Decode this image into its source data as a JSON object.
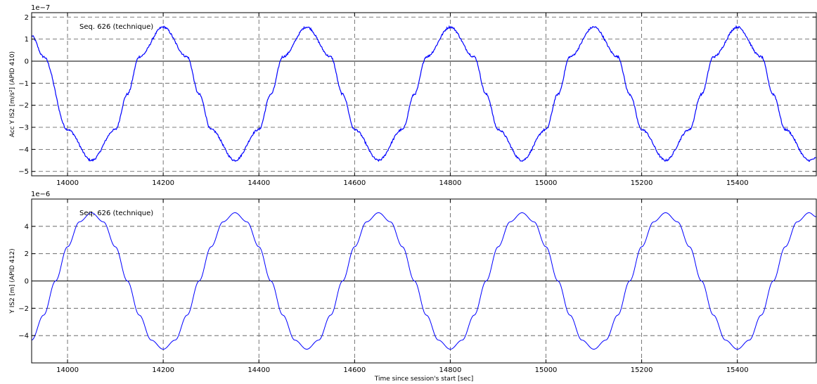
{
  "chart_data": [
    {
      "type": "line",
      "ylabel": "Acc Y IS2  [m/s²] (APID 410)",
      "annotation": "Seq. 626 (technique)",
      "offset_label": "1e−7",
      "xlim": [
        13925,
        15565
      ],
      "ylim": [
        -5.2e-07,
        2.2e-07
      ],
      "x_ticks": [
        14000,
        14200,
        14400,
        14600,
        14800,
        15000,
        15200,
        15400
      ],
      "x_tick_labels": [
        "14000",
        "14200",
        "14400",
        "14600",
        "14800",
        "15000",
        "15200",
        "15400"
      ],
      "y_ticks": [
        2e-07,
        1e-07,
        0,
        -1e-07,
        -2e-07,
        -3e-07,
        -4e-07,
        -5e-07
      ],
      "y_tick_labels": [
        "2",
        "1",
        "0",
        "−1",
        "−2",
        "−3",
        "−4",
        "−5"
      ],
      "grid": true,
      "color": "#0000ff",
      "noisy": true,
      "series": [
        {
          "x": [
            13925,
            13950,
            14000,
            14050,
            14100,
            14125,
            14150,
            14200,
            14250,
            14275,
            14300,
            14350,
            14400,
            14425,
            14450,
            14500,
            14550,
            14575,
            14600,
            14650,
            14700,
            14725,
            14750,
            14800,
            14850,
            14875,
            14900,
            14950,
            15000,
            15025,
            15050,
            15100,
            15150,
            15175,
            15200,
            15250,
            15300,
            15325,
            15350,
            15400,
            15450,
            15475,
            15500,
            15550,
            15565
          ],
          "y": [
            1.15e-07,
            2e-08,
            -3.1e-07,
            -4.5e-07,
            -3.1e-07,
            -1.5e-07,
            2e-08,
            1.55e-07,
            2e-08,
            -1.5e-07,
            -3.1e-07,
            -4.5e-07,
            -3.1e-07,
            -1.5e-07,
            2e-08,
            1.55e-07,
            2e-08,
            -1.5e-07,
            -3.1e-07,
            -4.5e-07,
            -3.1e-07,
            -1.5e-07,
            2e-08,
            1.55e-07,
            2e-08,
            -1.5e-07,
            -3.1e-07,
            -4.5e-07,
            -3.1e-07,
            -1.5e-07,
            2e-08,
            1.55e-07,
            2e-08,
            -1.5e-07,
            -3.1e-07,
            -4.5e-07,
            -3.1e-07,
            -1.5e-07,
            2e-08,
            1.55e-07,
            2e-08,
            -1.5e-07,
            -3.1e-07,
            -4.5e-07,
            -4.4e-07
          ]
        }
      ]
    },
    {
      "type": "line",
      "ylabel": "Y IS2  [m] (APID 412)",
      "xlabel": "Time since session's start [sec]",
      "annotation": "Seq. 626 (technique)",
      "offset_label": "1e−6",
      "xlim": [
        13925,
        15565
      ],
      "ylim": [
        -6e-06,
        6e-06
      ],
      "x_ticks": [
        14000,
        14200,
        14400,
        14600,
        14800,
        15000,
        15200,
        15400
      ],
      "x_tick_labels": [
        "14000",
        "14200",
        "14400",
        "14600",
        "14800",
        "15000",
        "15200",
        "15400"
      ],
      "y_ticks": [
        4e-06,
        2e-06,
        0,
        -2e-06,
        -4e-06
      ],
      "y_tick_labels": [
        "4",
        "2",
        "0",
        "−2",
        "−4"
      ],
      "grid": true,
      "color": "#0000ff",
      "noisy": false,
      "series": [
        {
          "x": [
            13925,
            13950,
            13975,
            14000,
            14025,
            14050,
            14075,
            14100,
            14125,
            14150,
            14175,
            14200,
            14225,
            14250,
            14275,
            14300,
            14325,
            14350,
            14375,
            14400,
            14425,
            14450,
            14475,
            14500,
            14525,
            14550,
            14575,
            14600,
            14625,
            14650,
            14675,
            14700,
            14725,
            14750,
            14775,
            14800,
            14825,
            14850,
            14875,
            14900,
            14925,
            14950,
            14975,
            15000,
            15025,
            15050,
            15075,
            15100,
            15125,
            15150,
            15175,
            15200,
            15225,
            15250,
            15275,
            15300,
            15325,
            15350,
            15375,
            15400,
            15425,
            15450,
            15475,
            15500,
            15525,
            15550,
            15565
          ],
          "y": [
            -4.33e-06,
            -2.5e-06,
            0,
            2.5e-06,
            4.33e-06,
            5e-06,
            4.33e-06,
            2.5e-06,
            0,
            -2.5e-06,
            -4.33e-06,
            -5e-06,
            -4.33e-06,
            -2.5e-06,
            0,
            2.5e-06,
            4.33e-06,
            5e-06,
            4.33e-06,
            2.5e-06,
            0,
            -2.5e-06,
            -4.33e-06,
            -5e-06,
            -4.33e-06,
            -2.5e-06,
            0,
            2.5e-06,
            4.33e-06,
            5e-06,
            4.33e-06,
            2.5e-06,
            0,
            -2.5e-06,
            -4.33e-06,
            -5e-06,
            -4.33e-06,
            -2.5e-06,
            0,
            2.5e-06,
            4.33e-06,
            5e-06,
            4.33e-06,
            2.5e-06,
            0,
            -2.5e-06,
            -4.33e-06,
            -5e-06,
            -4.33e-06,
            -2.5e-06,
            0,
            2.5e-06,
            4.33e-06,
            5e-06,
            4.33e-06,
            2.5e-06,
            0,
            -2.5e-06,
            -4.33e-06,
            -5e-06,
            -4.33e-06,
            -2.5e-06,
            0,
            2.5e-06,
            4.33e-06,
            5e-06,
            4.7e-06
          ]
        }
      ]
    }
  ]
}
